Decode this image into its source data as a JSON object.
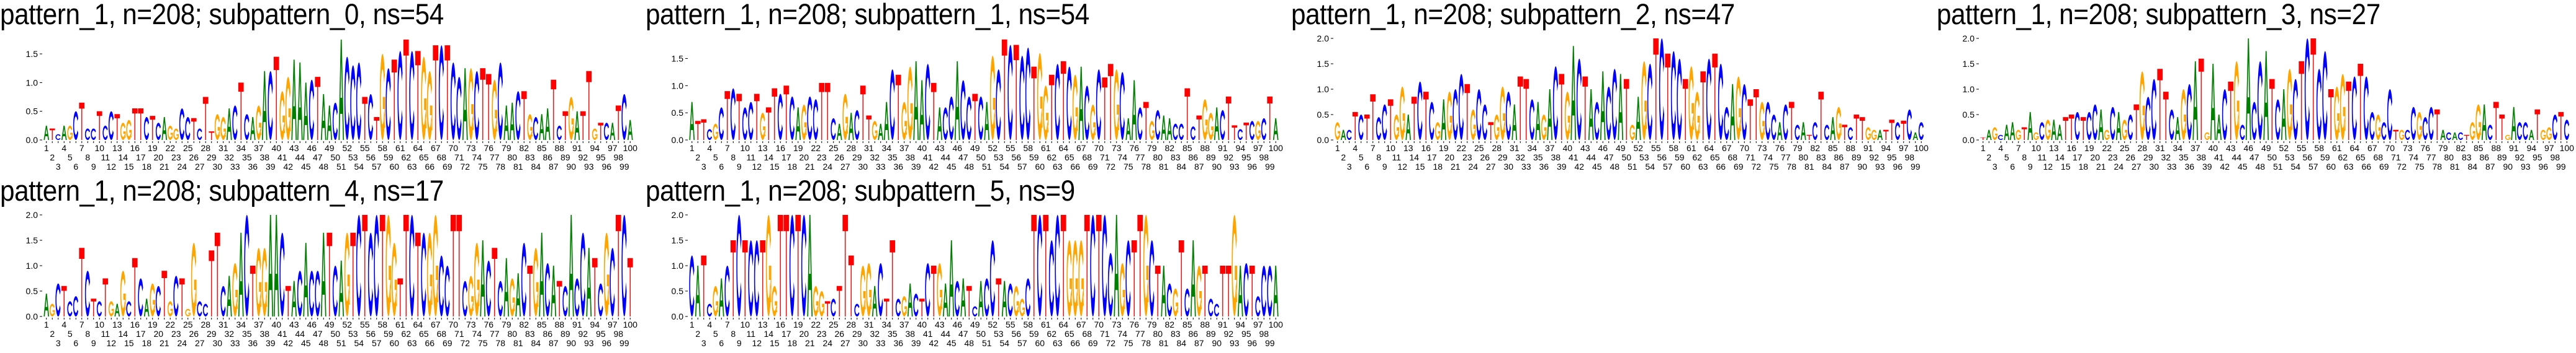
{
  "colors": {
    "A": "#008000",
    "C": "#0000ff",
    "G": "#ffa500",
    "T": "#ff0000"
  },
  "chart_data": [
    {
      "type": "sequence-logo",
      "title": "pattern_1, n=208; subpattern_0, ns=54",
      "ylim": [
        0,
        1.77
      ],
      "yticks": [
        "0.0",
        "0.5",
        "1.0",
        "1.5"
      ],
      "ytick_values": [
        0,
        0.5,
        1.0,
        1.5
      ],
      "x_range": [
        1,
        100
      ],
      "consensus": "ATCAGCTCCTCCTGGTTCTCAGGCCTCTTGGACTCAGACTGGAAACTAACACCCTCTGCTCTCTGGTCTCCAGCTTGCAACTGCAATCTGATTGTCATCA",
      "heights": [
        0.25,
        0.2,
        0.1,
        0.25,
        0.25,
        0.5,
        0.65,
        0.2,
        0.2,
        0.5,
        0.25,
        0.5,
        0.45,
        0.3,
        0.35,
        0.55,
        0.55,
        0.4,
        0.42,
        0.3,
        0.4,
        0.25,
        0.2,
        0.55,
        0.4,
        0.38,
        0.2,
        0.75,
        0.15,
        0.45,
        0.4,
        0.55,
        0.6,
        1.0,
        0.45,
        0.4,
        0.6,
        1.2,
        1.2,
        1.45,
        0.85,
        1.1,
        1.4,
        1.35,
        1.0,
        1.05,
        1.1,
        0.8,
        0.6,
        0.65,
        1.75,
        1.45,
        1.3,
        1.35,
        0.75,
        0.8,
        0.4,
        1.5,
        1.25,
        1.4,
        1.55,
        1.75,
        1.55,
        1.55,
        1.45,
        1.2,
        1.65,
        1.65,
        1.65,
        1.35,
        1.1,
        1.25,
        1.25,
        1.2,
        1.25,
        1.15,
        1.05,
        1.35,
        0.6,
        0.65,
        0.85,
        0.85,
        0.45,
        0.4,
        0.45,
        0.55,
        1.05,
        0.25,
        0.5,
        0.75,
        0.5,
        0.5,
        1.2,
        0.2,
        0.3,
        0.3,
        0.3,
        0.6,
        0.8,
        0.35
      ]
    },
    {
      "type": "sequence-logo",
      "title": "pattern_1, n=208; subpattern_1, ns=54",
      "ylim": [
        0,
        1.87
      ],
      "yticks": [
        "0.0",
        "0.5",
        "1.0",
        "1.5"
      ],
      "ytick_values": [
        0,
        0.5,
        1.0,
        1.5
      ],
      "x_range": [
        1,
        100
      ],
      "consensus": "ATTCGCTCTCCTGTTCTCAGCCTTCAGACTTGAACTGGAACTACCACCTCAGCTCTCCTGGTCTCGACGCTTGCAACTGCAACCTCTGGACTTCTCGCTA",
      "heights": [
        0.7,
        0.35,
        0.38,
        0.2,
        0.3,
        0.6,
        0.9,
        0.95,
        0.85,
        0.6,
        0.7,
        0.85,
        0.5,
        0.6,
        0.95,
        0.85,
        1.0,
        0.8,
        0.6,
        0.65,
        0.8,
        0.75,
        1.05,
        1.05,
        0.4,
        0.3,
        0.85,
        0.5,
        0.55,
        1.0,
        0.45,
        0.35,
        0.3,
        0.7,
        1.3,
        1.2,
        0.7,
        1.35,
        1.45,
        1.1,
        1.4,
        1.05,
        0.6,
        0.6,
        0.8,
        1.45,
        1.1,
        0.8,
        0.85,
        0.8,
        0.7,
        1.55,
        1.3,
        1.85,
        1.75,
        1.75,
        1.55,
        1.7,
        1.35,
        1.6,
        1.0,
        1.2,
        1.4,
        1.45,
        1.35,
        1.2,
        1.35,
        1.0,
        0.65,
        1.3,
        1.15,
        1.4,
        1.3,
        1.25,
        0.4,
        1.1,
        0.6,
        0.7,
        0.35,
        0.55,
        0.45,
        0.4,
        0.3,
        0.3,
        0.95,
        0.25,
        0.45,
        0.75,
        0.5,
        0.6,
        0.55,
        0.8,
        0.27,
        0.2,
        0.32,
        0.35,
        0.35,
        0.4,
        0.8,
        0.4
      ]
    },
    {
      "type": "sequence-logo",
      "title": "pattern_1, n=208; subpattern_2, ns=47",
      "ylim": [
        0,
        2.0
      ],
      "yticks": [
        "0.0",
        "0.5",
        "1.0",
        "1.5",
        "2.0"
      ],
      "ytick_values": [
        0,
        0.5,
        1.0,
        1.5,
        2.0
      ],
      "x_range": [
        1,
        100
      ],
      "consensus": "GACTCTTCCTGGATCTCGAGCCTGCCTGGCATTCAGACTGACTACACCATGAGCTCTCCTGGTCTCCAGCTTGCCACTCATCTCAGTCTTGGATTCTCAC",
      "heights": [
        0.35,
        0.2,
        0.2,
        0.55,
        0.5,
        0.5,
        0.9,
        0.45,
        0.7,
        0.8,
        0.5,
        1.05,
        0.5,
        0.85,
        1.15,
        0.95,
        0.75,
        0.35,
        0.8,
        0.95,
        1.0,
        1.3,
        1.1,
        0.6,
        1.0,
        0.7,
        0.35,
        0.5,
        1.05,
        0.95,
        0.7,
        1.25,
        1.2,
        0.8,
        0.75,
        0.5,
        1.0,
        1.45,
        1.3,
        0.95,
        1.85,
        1.6,
        1.25,
        1.0,
        0.75,
        1.35,
        1.05,
        1.4,
        1.3,
        1.2,
        0.3,
        0.85,
        1.55,
        1.5,
        2.0,
        2.0,
        1.7,
        1.75,
        1.6,
        1.2,
        1.45,
        0.95,
        1.35,
        1.6,
        1.7,
        1.5,
        0.65,
        1.1,
        1.25,
        1.1,
        0.8,
        1.0,
        0.75,
        0.75,
        0.5,
        0.35,
        0.7,
        0.75,
        0.3,
        0.35,
        0.1,
        0.35,
        0.95,
        0.3,
        0.45,
        0.65,
        0.3,
        0.25,
        0.5,
        0.45,
        0.25,
        0.2,
        0.2,
        0.2,
        0.4,
        0.35,
        0.38,
        0.6,
        0.15,
        0.35
      ]
    },
    {
      "type": "sequence-logo",
      "title": "pattern_1, n=208; subpattern_3, ns=27",
      "ylim": [
        0,
        2.0
      ],
      "yticks": [
        "0.0",
        "0.5",
        "1.0",
        "1.5",
        "2.0"
      ],
      "ytick_values": [
        0,
        0.5,
        1.0,
        1.5,
        2.0
      ],
      "x_range": [
        1,
        100
      ],
      "consensus": "TAGCAAGTAGCGAATTCTCCAGCAGCTGCCTTCAGCATGAACTGCACCATCAGCTCTCCTGGTCTCCGCCTGCCGCCTACACTGGACTTGACCATGGCTC",
      "heights": [
        0.05,
        0.2,
        0.25,
        0.1,
        0.3,
        0.35,
        0.2,
        0.25,
        0.55,
        0.15,
        0.35,
        0.4,
        0.4,
        0.3,
        0.45,
        0.5,
        0.55,
        0.45,
        0.55,
        0.7,
        0.6,
        0.2,
        0.65,
        0.55,
        0.4,
        0.5,
        0.7,
        1.35,
        0.85,
        1.2,
        1.4,
        0.95,
        0.6,
        0.45,
        1.0,
        1.1,
        1.55,
        1.6,
        0.15,
        1.5,
        0.5,
        1.0,
        1.15,
        1.55,
        0.3,
        2.0,
        0.75,
        1.55,
        1.75,
        1.2,
        0.8,
        1.0,
        1.4,
        1.2,
        1.55,
        2.0,
        2.0,
        1.4,
        1.75,
        1.0,
        1.05,
        1.3,
        1.15,
        1.25,
        1.5,
        1.25,
        0.55,
        0.5,
        0.35,
        1.0,
        0.2,
        0.2,
        0.2,
        0.65,
        0.55,
        0.45,
        0.65,
        0.6,
        0.2,
        0.15,
        0.15,
        0.15,
        0.1,
        0.35,
        0.7,
        0.7,
        0.3,
        0.75,
        0.5,
        0.1,
        0.65,
        0.35,
        0.35,
        0.2,
        0.6,
        0.2,
        0.25,
        0.5,
        0.55,
        0.4
      ]
    },
    {
      "type": "sequence-logo",
      "title": "pattern_1, n=208; subpattern_4, ns=17",
      "ylim": [
        0,
        2.0
      ],
      "yticks": [
        "0.0",
        "0.5",
        "1.0",
        "1.5",
        "2.0"
      ],
      "ytick_values": [
        0,
        0.5,
        1.0,
        1.5,
        2.0
      ],
      "x_range": [
        1,
        100
      ],
      "consensus": "AGCTCCTCTCTGAGCTCAGCTGCTGGCCTTCAGACTGGAACTACACCATCAGTCTCCTGGTTCTCGGCCTTCGGACTCAGACTGACATCACCATCGCTCT",
      "heights": [
        0.45,
        0.25,
        0.65,
        0.6,
        0.3,
        0.4,
        1.35,
        0.9,
        0.35,
        0.3,
        0.75,
        0.3,
        0.25,
        0.9,
        0.3,
        1.15,
        0.75,
        0.35,
        0.65,
        0.6,
        0.9,
        0.3,
        0.8,
        0.75,
        0.15,
        1.45,
        0.3,
        0.25,
        1.3,
        1.65,
        0.6,
        0.8,
        1.05,
        1.65,
        2.0,
        1.0,
        1.35,
        1.35,
        2.0,
        2.0,
        1.65,
        0.6,
        0.7,
        0.9,
        1.45,
        0.9,
        0.9,
        1.65,
        1.65,
        1.0,
        1.1,
        1.65,
        1.65,
        2.0,
        2.0,
        1.65,
        2.0,
        2.0,
        2.0,
        1.45,
        0.75,
        2.0,
        2.0,
        1.65,
        1.65,
        1.65,
        2.0,
        1.2,
        1.0,
        2.0,
        2.0,
        0.7,
        0.8,
        1.45,
        1.5,
        1.1,
        1.35,
        0.7,
        1.15,
        0.75,
        0.85,
        1.45,
        1.0,
        1.35,
        1.65,
        1.05,
        1.0,
        0.7,
        0.6,
        2.0,
        0.75,
        1.65,
        1.35,
        1.15,
        0.65,
        1.65,
        1.35,
        2.0,
        2.0,
        1.15
      ]
    },
    {
      "type": "sequence-logo",
      "title": "pattern_1, n=208; subpattern_5, ns=9",
      "ylim": [
        0,
        2.0
      ],
      "yticks": [
        "0.0",
        "0.5",
        "1.0",
        "1.5",
        "2.0"
      ],
      "ytick_values": [
        0,
        0.5,
        1.0,
        1.5,
        2.0
      ],
      "x_range": [
        1,
        100
      ],
      "consensus": "CATCGACTCTCCTGGTTCTCAGGTCTTTCGGACTTCGACTCTGAACATCACCTACGGCTCTCCTGGGTCTCCAGCTTGCTACGTCAGTCCTTGACTCCCA",
      "heights": [
        1.2,
        1.0,
        1.2,
        0.25,
        0.6,
        0.75,
        1.0,
        1.5,
        2.0,
        1.5,
        1.5,
        1.5,
        1.5,
        2.0,
        0.6,
        2.0,
        2.0,
        2.0,
        2.0,
        2.0,
        2.0,
        0.6,
        0.5,
        0.3,
        0.35,
        0.6,
        2.0,
        1.2,
        0.25,
        1.0,
        1.05,
        0.6,
        1.05,
        0.35,
        1.5,
        0.35,
        0.4,
        0.65,
        0.45,
        0.35,
        1.05,
        1.0,
        1.05,
        0.65,
        1.5,
        0.7,
        0.75,
        0.6,
        0.2,
        0.7,
        0.75,
        1.5,
        0.75,
        0.7,
        0.65,
        0.6,
        0.35,
        0.75,
        2.0,
        2.0,
        2.0,
        1.5,
        2.0,
        2.0,
        1.5,
        1.5,
        1.5,
        2.0,
        2.0,
        2.0,
        2.0,
        1.25,
        2.0,
        1.05,
        1.5,
        1.5,
        2.0,
        2.0,
        1.5,
        1.0,
        1.0,
        0.65,
        0.55,
        1.5,
        0.55,
        1.5,
        1.0,
        1.0,
        0.35,
        0.25,
        1.0,
        1.0,
        2.0,
        1.0,
        1.05,
        1.0,
        0.4,
        1.0,
        1.0,
        1.0
      ]
    }
  ]
}
